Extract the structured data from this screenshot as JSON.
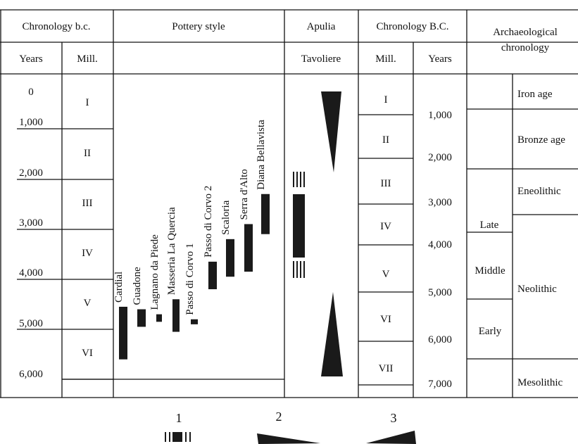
{
  "headers": {
    "chronology_bc": "Chronology b.c.",
    "pottery_style": "Pottery style",
    "apulia": "Apulia",
    "chronology_BC": "Chronology B.C.",
    "archaeological_line1": "Archaeological",
    "archaeological_line2": "chronology",
    "years": "Years",
    "mill": "Mill.",
    "tavoliere": "Tavoliere",
    "mill2": "Mill.",
    "years2": "Years"
  },
  "left_years": [
    "0",
    "1,000",
    "2,000",
    "3,000",
    "4,000",
    "5,000",
    "6,000"
  ],
  "left_mill": [
    "I",
    "II",
    "III",
    "IV",
    "V",
    "VI"
  ],
  "pottery_styles": [
    {
      "name": "Cardial",
      "start": 4550,
      "end": 5600
    },
    {
      "name": "Guadone",
      "start": 4600,
      "end": 4950
    },
    {
      "name": "Lagnano da Piede",
      "start": 4700,
      "end": 4850
    },
    {
      "name": "Masseria La Quercia",
      "start": 4400,
      "end": 5050
    },
    {
      "name": "Passo di Corvo 1",
      "start": 4800,
      "end": 4900
    },
    {
      "name": "Passo di Corvo 2",
      "start": 3650,
      "end": 4200
    },
    {
      "name": "Scaloria",
      "start": 3200,
      "end": 3950
    },
    {
      "name": "Serra d'Alto",
      "start": 2900,
      "end": 3850
    },
    {
      "name": "Diana Bellavista",
      "start": 2300,
      "end": 3100
    }
  ],
  "right_mill": [
    "I",
    "II",
    "III",
    "IV",
    "V",
    "VI",
    "VII"
  ],
  "right_years": [
    "1,000",
    "2,000",
    "3,000",
    "4,000",
    "5,000",
    "6,000",
    "7,000"
  ],
  "sub_periods": [
    "Late",
    "Middle",
    "Early"
  ],
  "periods": [
    "Iron age",
    "Bronze age",
    "Eneolithic",
    "Neolithic",
    "Mesolithic"
  ],
  "legend": [
    "1",
    "2",
    "3"
  ],
  "colors": {
    "ink": "#111111",
    "bar": "#1a1a1a",
    "background": "#ffffff"
  }
}
